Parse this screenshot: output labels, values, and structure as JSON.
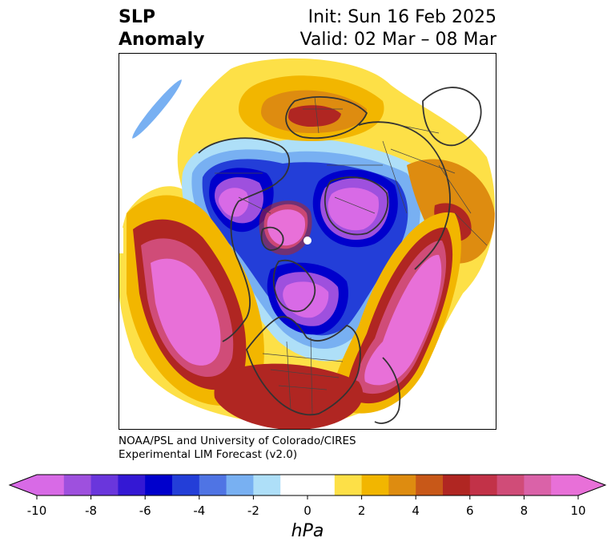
{
  "title": {
    "left_line1": "SLP",
    "left_line2": "Anomaly",
    "right_line1": "Init: Sun 16 Feb 2025",
    "right_line2": "Valid: 02 Mar – 08 Mar"
  },
  "credit": {
    "line1": "NOAA/PSL and University of Colorado/CIRES",
    "line2": "Experimental LIM Forecast (v2.0)"
  },
  "colorbar": {
    "unit": "hPa",
    "ticks": [
      "-10",
      "-8",
      "-6",
      "-4",
      "-2",
      "0",
      "2",
      "4",
      "6",
      "8",
      "10"
    ],
    "tick_values": [
      -10,
      -8,
      -6,
      -4,
      -2,
      0,
      2,
      4,
      6,
      8,
      10
    ],
    "range": [
      -10,
      10
    ],
    "step": 1,
    "colors": [
      "#d86ae6",
      "#9e50de",
      "#6a36dc",
      "#3418d4",
      "#0000cc",
      "#233ed8",
      "#4f74e4",
      "#78b0f2",
      "#aedff8",
      "#ffffff",
      "#ffffff",
      "#fde047",
      "#f2b600",
      "#de8c10",
      "#c85818",
      "#b02622",
      "#c23248",
      "#d04c78",
      "#da62a8",
      "#e870d8"
    ],
    "extend": "both"
  },
  "map": {
    "projection": "north-polar-stereographic",
    "field": "sea level pressure anomaly"
  }
}
